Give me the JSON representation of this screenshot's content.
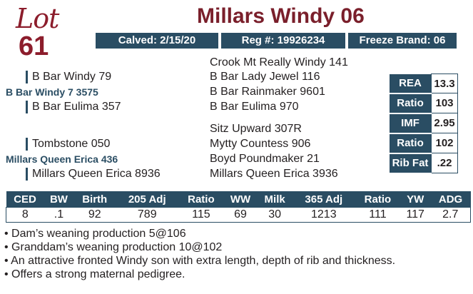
{
  "lot": {
    "word": "Lot",
    "number": "61"
  },
  "title": "Millars Windy 06",
  "info": {
    "calved": "Calved: 2/15/20",
    "reg": "Reg #: 19926234",
    "freeze": "Freeze Brand: 06"
  },
  "pedigree": {
    "sire_sire": "B Bar Windy 79",
    "sire": "B Bar Windy 7 3575",
    "sire_dam": "B Bar Eulima 357",
    "sss": "Crook Mt Really Windy 141",
    "ssd": "B Bar Lady Jewel 116",
    "sds": "B Bar Rainmaker 9601",
    "sdd": "B Bar Eulima 970",
    "dam_sire": "Tombstone 050",
    "dam": "Millars Queen Erica 436",
    "dam_dam": "Millars Queen Erica 8936",
    "dss": "Sitz Upward 307R",
    "dsd": "Mytty Countess 906",
    "dds": "Boyd Poundmaker 21",
    "ddd": "Millars Queen Erica 3936"
  },
  "carcass": [
    {
      "label": "REA",
      "value": "13.3"
    },
    {
      "label": "Ratio",
      "value": "103"
    },
    {
      "label": "IMF",
      "value": "2.95"
    },
    {
      "label": "Ratio",
      "value": "102"
    },
    {
      "label": "Rib Fat",
      "value": ".22"
    }
  ],
  "epd": {
    "headers": [
      "CED",
      "BW",
      "Birth",
      "205 Adj",
      "Ratio",
      "WW",
      "Milk",
      "365 Adj",
      "Ratio",
      "YW",
      "ADG"
    ],
    "values": [
      "8",
      ".1",
      "92",
      "789",
      "115",
      "69",
      "30",
      "1213",
      "111",
      "117",
      "2.7"
    ]
  },
  "notes": [
    "• Dam’s weaning production 5@106",
    "• Granddam’s weaning production 10@102",
    "• An attractive fronted Windy son with extra length, depth of rib and thickness.",
    "• Offers a strong maternal pedigree."
  ]
}
